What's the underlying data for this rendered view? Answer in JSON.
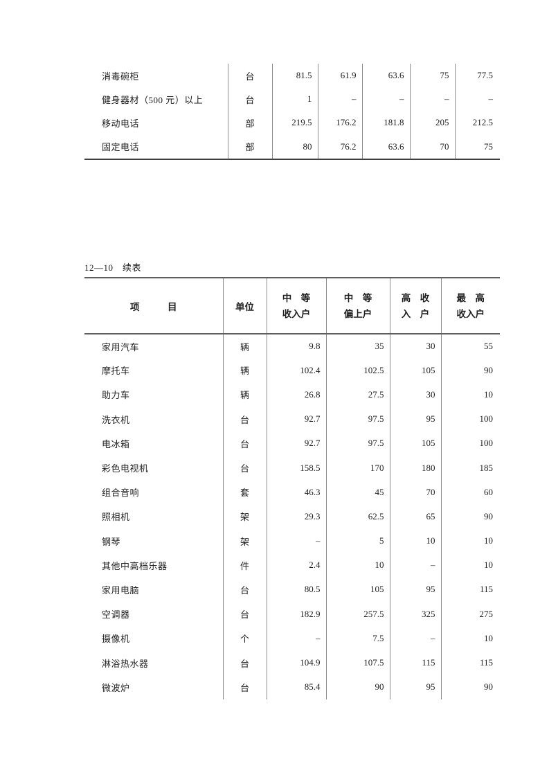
{
  "colors": {
    "text": "#1f1f1f",
    "rule_light": "#8a8a8a",
    "rule_heavy": "#5e5e5e",
    "rule_table_end": "#3f3f3f"
  },
  "top_table": {
    "rows": [
      {
        "cells": [
          "消毒碗柜",
          "台",
          "81.5",
          "61.9",
          "63.6",
          "75",
          "77.5"
        ]
      },
      {
        "cells": [
          "健身器材（500 元）以上",
          "台",
          "1",
          "–",
          "–",
          "–",
          "–"
        ]
      },
      {
        "cells": [
          "移动电话",
          "部",
          "219.5",
          "176.2",
          "181.8",
          "205",
          "212.5"
        ]
      },
      {
        "cells": [
          "固定电话",
          "部",
          "80",
          "76.2",
          "63.6",
          "70",
          "75"
        ]
      }
    ]
  },
  "continued_table": {
    "label": "12—10　续表",
    "header": {
      "item": "项　　　目",
      "unit": "单位",
      "cols": [
        {
          "line1": "中　等",
          "line2": "收入户"
        },
        {
          "line1": "中　等",
          "line2": "偏上户"
        },
        {
          "line1": "高　收",
          "line2": "入　户"
        },
        {
          "line1": "最　高",
          "line2": "收入户"
        }
      ]
    },
    "rows": [
      {
        "cells": [
          "家用汽车",
          "辆",
          "9.8",
          "35",
          "30",
          "55"
        ]
      },
      {
        "cells": [
          "摩托车",
          "辆",
          "102.4",
          "102.5",
          "105",
          "90"
        ]
      },
      {
        "cells": [
          "助力车",
          "辆",
          "26.8",
          "27.5",
          "30",
          "10"
        ]
      },
      {
        "cells": [
          "洗衣机",
          "台",
          "92.7",
          "97.5",
          "95",
          "100"
        ]
      },
      {
        "cells": [
          "电冰箱",
          "台",
          "92.7",
          "97.5",
          "105",
          "100"
        ]
      },
      {
        "cells": [
          "彩色电视机",
          "台",
          "158.5",
          "170",
          "180",
          "185"
        ]
      },
      {
        "cells": [
          "组合音响",
          "套",
          "46.3",
          "45",
          "70",
          "60"
        ]
      },
      {
        "cells": [
          "照相机",
          "架",
          "29.3",
          "62.5",
          "65",
          "90"
        ]
      },
      {
        "cells": [
          "钢琴",
          "架",
          "–",
          "5",
          "10",
          "10"
        ]
      },
      {
        "cells": [
          "其他中高档乐器",
          "件",
          "2.4",
          "10",
          "–",
          "10"
        ]
      },
      {
        "cells": [
          "家用电脑",
          "台",
          "80.5",
          "105",
          "95",
          "115"
        ]
      },
      {
        "cells": [
          "空调器",
          "台",
          "182.9",
          "257.5",
          "325",
          "275"
        ]
      },
      {
        "cells": [
          "摄像机",
          "个",
          "–",
          "7.5",
          "–",
          "10"
        ]
      },
      {
        "cells": [
          "淋浴热水器",
          "台",
          "104.9",
          "107.5",
          "115",
          "115"
        ]
      },
      {
        "cells": [
          "微波炉",
          "台",
          "85.4",
          "90",
          "95",
          "90"
        ]
      }
    ]
  }
}
